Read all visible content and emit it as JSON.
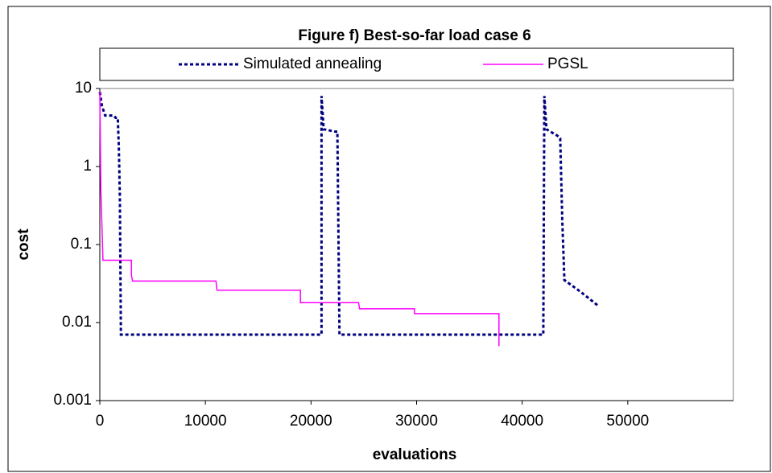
{
  "chart_data": {
    "type": "line",
    "title": "Figure f) Best-so-far load case 6",
    "x_label": "evaluations",
    "y_label": "cost",
    "log_y": true,
    "legend": "top",
    "xlim": [
      0,
      60000
    ],
    "xticks": [
      0,
      10000,
      20000,
      30000,
      40000,
      50000
    ],
    "ylim": [
      0.001,
      10
    ],
    "yticks": [
      0.001,
      0.01,
      0.1,
      1,
      10
    ],
    "series": [
      {
        "name": "Simulated annealing",
        "color": "#000080",
        "dashed": true,
        "x": [
          0,
          200,
          500,
          1300,
          1500,
          1700,
          1800,
          1900,
          2000,
          21000,
          21000,
          21200,
          22300,
          22500,
          22700,
          42000,
          42100,
          42300,
          43300,
          43600,
          43800,
          44000,
          45500,
          47300
        ],
        "values": [
          9,
          6,
          4.5,
          4.5,
          4.2,
          4.2,
          1.8,
          0.4,
          0.007,
          0.007,
          8,
          3,
          2.8,
          2.8,
          0.007,
          0.007,
          8,
          3,
          2.5,
          2.3,
          0.2,
          0.035,
          0.025,
          0.016
        ]
      },
      {
        "name": "PGSL",
        "color": "#ff00ff",
        "dashed": false,
        "x": [
          0,
          100,
          300,
          3000,
          3000,
          3100,
          11000,
          11100,
          19000,
          19000,
          24500,
          24600,
          29800,
          29800,
          37800,
          37800
        ],
        "values": [
          9,
          0.5,
          0.063,
          0.063,
          0.04,
          0.034,
          0.034,
          0.026,
          0.026,
          0.018,
          0.018,
          0.015,
          0.015,
          0.013,
          0.013,
          0.005
        ]
      }
    ]
  }
}
